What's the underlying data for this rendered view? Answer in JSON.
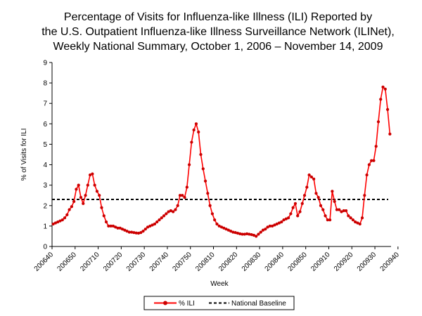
{
  "chart_data": {
    "type": "line",
    "title": [
      "Percentage of Visits for Influenza-like Illness (ILI) Reported by",
      "the U.S. Outpatient Influenza-like Illness Surveillance Network (ILINet),",
      "Weekly National Summary, October 1, 2006 – November 14, 2009"
    ],
    "xlabel": "Week",
    "ylabel": "% of Visits for ILI",
    "ylim": [
      0,
      9
    ],
    "yticks": [
      0,
      1,
      2,
      3,
      4,
      5,
      6,
      7,
      8,
      9
    ],
    "grid": false,
    "legend_position": "bottom-center",
    "x_tick_labels": [
      "200640",
      "200650",
      "200710",
      "200720",
      "200730",
      "200740",
      "200750",
      "200810",
      "200820",
      "200830",
      "200840",
      "200850",
      "200910",
      "200920",
      "200930",
      "200940"
    ],
    "x_tick_interval_weeks": 10,
    "series": [
      {
        "name": "% ILI",
        "color": "#ff0000",
        "marker_color": "#cc0000",
        "style": "line-with-markers",
        "values": [
          1.1,
          1.15,
          1.2,
          1.25,
          1.3,
          1.4,
          1.55,
          1.8,
          1.95,
          2.2,
          2.8,
          3.0,
          2.4,
          2.1,
          2.5,
          3.0,
          3.5,
          3.55,
          3.0,
          2.7,
          2.5,
          1.9,
          1.5,
          1.2,
          1.0,
          1.0,
          1.0,
          0.95,
          0.9,
          0.9,
          0.85,
          0.8,
          0.75,
          0.7,
          0.7,
          0.68,
          0.66,
          0.65,
          0.68,
          0.75,
          0.85,
          0.95,
          1.0,
          1.05,
          1.1,
          1.2,
          1.3,
          1.4,
          1.5,
          1.6,
          1.7,
          1.75,
          1.7,
          1.8,
          2.0,
          2.5,
          2.5,
          2.4,
          2.9,
          4.0,
          5.1,
          5.7,
          6.0,
          5.6,
          4.5,
          3.8,
          3.2,
          2.6,
          2.0,
          1.6,
          1.3,
          1.1,
          1.0,
          0.95,
          0.9,
          0.85,
          0.8,
          0.75,
          0.7,
          0.68,
          0.65,
          0.62,
          0.6,
          0.6,
          0.62,
          0.6,
          0.58,
          0.55,
          0.5,
          0.6,
          0.7,
          0.8,
          0.85,
          0.95,
          1.0,
          1.0,
          1.05,
          1.1,
          1.15,
          1.2,
          1.3,
          1.35,
          1.4,
          1.6,
          1.9,
          2.1,
          1.5,
          1.7,
          2.1,
          2.5,
          2.9,
          3.5,
          3.4,
          3.3,
          2.6,
          2.4,
          2.0,
          1.8,
          1.5,
          1.3,
          1.3,
          2.7,
          2.2,
          1.8,
          1.8,
          1.7,
          1.75,
          1.75,
          1.5,
          1.4,
          1.3,
          1.2,
          1.15,
          1.1,
          1.4,
          2.5,
          3.5,
          4.0,
          4.2,
          4.2,
          4.9,
          6.1,
          7.2,
          7.8,
          7.7,
          6.7,
          5.5
        ]
      },
      {
        "name": "National Baseline",
        "color": "#000000",
        "style": "dashed",
        "value": 2.3
      }
    ]
  }
}
